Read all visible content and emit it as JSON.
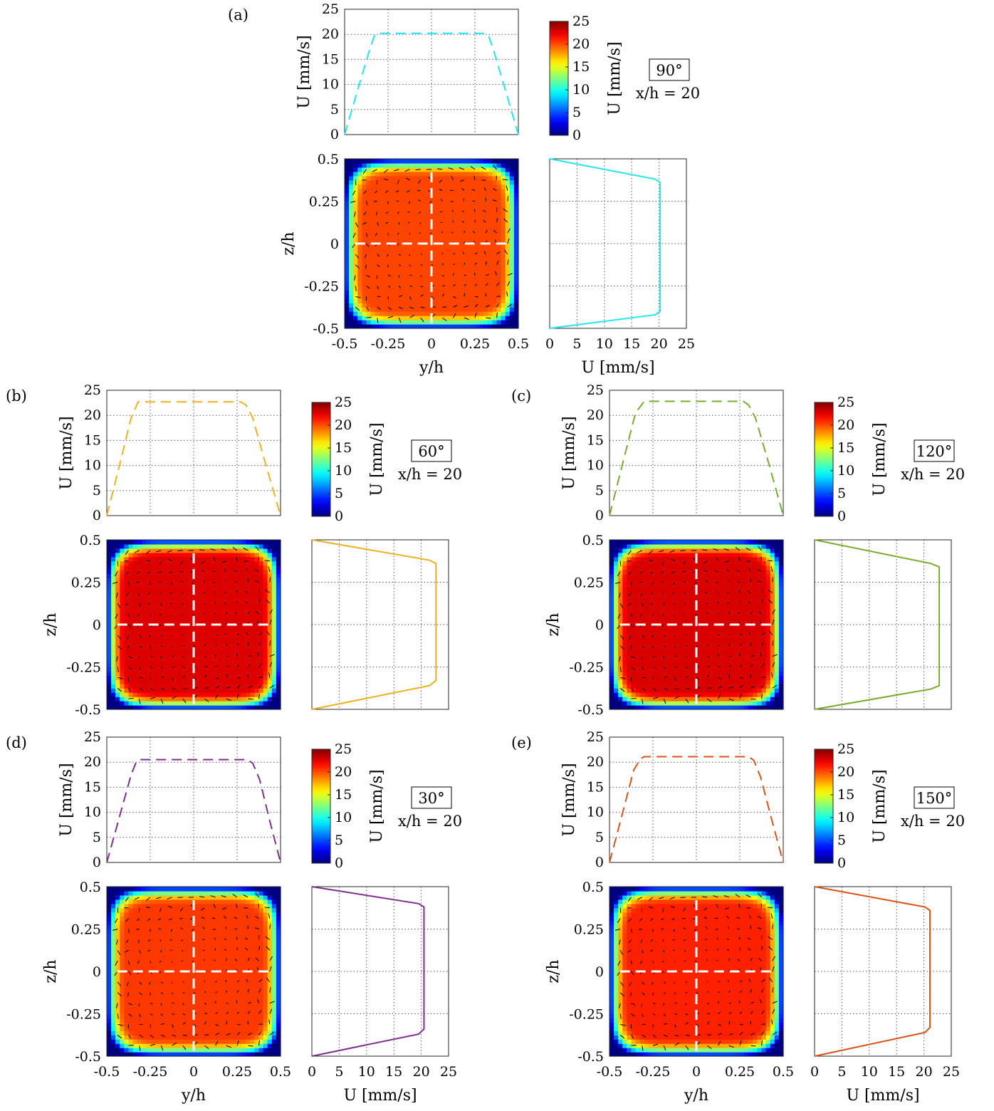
{
  "colorbar": {
    "label": "U [mm/s]",
    "ticks": [
      "0",
      "5",
      "10",
      "15",
      "20",
      "25"
    ],
    "range": [
      0,
      25
    ],
    "colormap": "jet"
  },
  "axes_labels": {
    "top_y": "U [mm/s]",
    "contour_y": "z/h",
    "contour_x": "y/h",
    "side_x": "U [mm/s]",
    "side_x_panel_a": "U [mm/s]"
  },
  "ticks": {
    "u_ticks": [
      "0",
      "5",
      "10",
      "15",
      "20",
      "25"
    ],
    "yh_ticks": [
      "-0.5",
      "-0.25",
      "0",
      "0.25",
      "0.5"
    ],
    "zh_ticks": [
      "-0.5",
      "-0.25",
      "0",
      "0.25",
      "0.5"
    ]
  },
  "chart_data": [
    {
      "type": "heatmap",
      "panel": "(a)",
      "angle_label": "90°",
      "position_label": "x/h = 20",
      "line_color": "#22e6f0",
      "u_max": 20.2,
      "flat_fraction": 0.32,
      "y_range": [
        -0.5,
        0.5
      ],
      "z_range": [
        -0.5,
        0.5
      ],
      "u_range": [
        0,
        25
      ],
      "top_profile_y": [
        -0.5,
        -0.42,
        -0.36,
        -0.33,
        -0.31,
        0.31,
        0.33,
        0.36,
        0.42,
        0.5
      ],
      "top_profile_u": [
        0,
        9.5,
        16.5,
        19.6,
        20.2,
        20.2,
        19.6,
        16.5,
        9.5,
        0
      ],
      "side_profile_z": [
        0.5,
        0.38,
        0.36,
        -0.4,
        -0.42,
        -0.5
      ],
      "side_profile_u": [
        0,
        19.3,
        20.2,
        20.2,
        19.3,
        0
      ]
    },
    {
      "type": "heatmap",
      "panel": "(b)",
      "angle_label": "60°",
      "position_label": "x/h = 20",
      "line_color": "#edb120",
      "u_max": 22.7,
      "flat_fraction": 0.32,
      "y_range": [
        -0.5,
        0.5
      ],
      "z_range": [
        -0.5,
        0.5
      ],
      "u_range": [
        0,
        25
      ],
      "top_profile_y": [
        -0.5,
        -0.42,
        -0.36,
        -0.32,
        0.27,
        0.3,
        0.34,
        0.4,
        0.5
      ],
      "top_profile_u": [
        0,
        11,
        19.5,
        22.7,
        22.7,
        22.1,
        19.5,
        12,
        0
      ],
      "side_profile_z": [
        0.5,
        0.38,
        0.36,
        -0.33,
        -0.36,
        -0.5
      ],
      "side_profile_u": [
        0,
        21.5,
        22.7,
        22.7,
        21.5,
        0
      ]
    },
    {
      "type": "heatmap",
      "panel": "(c)",
      "angle_label": "120°",
      "position_label": "x/h = 20",
      "line_color": "#77ac30",
      "u_max": 22.8,
      "flat_fraction": 0.32,
      "y_range": [
        -0.5,
        0.5
      ],
      "z_range": [
        -0.5,
        0.5
      ],
      "u_range": [
        0,
        25
      ],
      "top_profile_y": [
        -0.5,
        -0.42,
        -0.35,
        -0.3,
        0.27,
        0.3,
        0.34,
        0.42,
        0.5
      ],
      "top_profile_u": [
        0,
        11,
        20.5,
        22.8,
        22.8,
        22.1,
        19.5,
        10,
        0
      ],
      "side_profile_z": [
        0.5,
        0.36,
        0.34,
        -0.36,
        -0.38,
        -0.5
      ],
      "side_profile_u": [
        0,
        21.3,
        22.8,
        22.8,
        21.3,
        0
      ]
    },
    {
      "type": "heatmap",
      "panel": "(d)",
      "angle_label": "30°",
      "position_label": "x/h = 20",
      "line_color": "#7e2f8e",
      "u_max": 20.5,
      "flat_fraction": 0.32,
      "y_range": [
        -0.5,
        0.5
      ],
      "z_range": [
        -0.5,
        0.5
      ],
      "u_range": [
        0,
        25
      ],
      "top_profile_y": [
        -0.5,
        -0.42,
        -0.36,
        -0.33,
        -0.31,
        0.31,
        0.34,
        0.38,
        0.44,
        0.5
      ],
      "top_profile_u": [
        0,
        10,
        17.5,
        20.1,
        20.5,
        20.5,
        19.8,
        16.5,
        8,
        0
      ],
      "side_profile_z": [
        0.5,
        0.4,
        0.38,
        -0.34,
        -0.37,
        -0.5
      ],
      "side_profile_u": [
        0,
        19.5,
        20.5,
        20.5,
        19.5,
        0
      ]
    },
    {
      "type": "heatmap",
      "panel": "(e)",
      "angle_label": "150°",
      "position_label": "x/h = 20",
      "line_color": "#d95319",
      "u_max": 21.1,
      "flat_fraction": 0.32,
      "y_range": [
        -0.5,
        0.5
      ],
      "z_range": [
        -0.5,
        0.5
      ],
      "u_range": [
        0,
        25
      ],
      "top_profile_y": [
        -0.5,
        -0.42,
        -0.36,
        -0.32,
        -0.3,
        0.3,
        0.33,
        0.37,
        0.43,
        0.5
      ],
      "top_profile_u": [
        0,
        10.5,
        18.5,
        20.7,
        21.1,
        21.1,
        20.4,
        17,
        9,
        0
      ],
      "side_profile_z": [
        0.5,
        0.38,
        0.36,
        -0.33,
        -0.36,
        -0.5
      ],
      "side_profile_u": [
        0,
        20.2,
        21.1,
        21.1,
        20.2,
        0
      ]
    }
  ]
}
